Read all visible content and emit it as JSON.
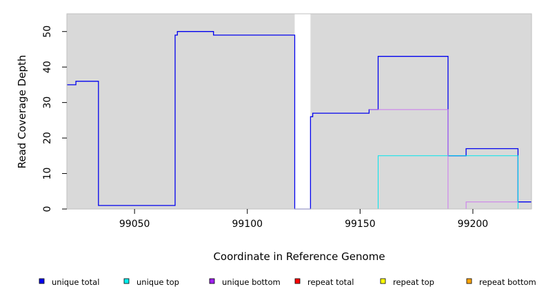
{
  "chart_data": {
    "type": "line",
    "xlabel": "Coordinate in Reference Genome",
    "ylabel": "Read Coverage Depth",
    "xlim": [
      99020,
      99226
    ],
    "ylim": [
      0,
      55
    ],
    "x_ticks": [
      99050,
      99100,
      99150,
      99200
    ],
    "x_tick_labels": [
      "99050",
      "99100",
      "99150",
      "99200"
    ],
    "y_ticks": [
      0,
      10,
      20,
      30,
      40,
      50
    ],
    "y_tick_labels": [
      "0",
      "10",
      "20",
      "30",
      "40",
      "50"
    ],
    "background_color": "#d9d9d9",
    "gap_regions": [
      [
        99121,
        99128
      ]
    ],
    "series": [
      {
        "name": "unique total",
        "color": "#0000ee",
        "points": [
          [
            99020,
            35
          ],
          [
            99024,
            35
          ],
          [
            99024,
            36
          ],
          [
            99034,
            36
          ],
          [
            99034,
            1
          ],
          [
            99068,
            1
          ],
          [
            99068,
            49
          ],
          [
            99069,
            49
          ],
          [
            99069,
            50
          ],
          [
            99085,
            50
          ],
          [
            99085,
            49
          ],
          [
            99121,
            49
          ],
          [
            99121,
            0
          ],
          [
            99128,
            0
          ],
          [
            99128,
            26
          ],
          [
            99129,
            26
          ],
          [
            99129,
            27
          ],
          [
            99154,
            27
          ],
          [
            99154,
            28
          ],
          [
            99158,
            28
          ],
          [
            99158,
            43
          ],
          [
            99189,
            43
          ],
          [
            99189,
            15
          ],
          [
            99197,
            15
          ],
          [
            99197,
            17
          ],
          [
            99220,
            17
          ],
          [
            99220,
            2
          ],
          [
            99226,
            2
          ]
        ]
      },
      {
        "name": "unique top",
        "color": "#00e5ee",
        "points": [
          [
            99020,
            0
          ],
          [
            99158,
            0
          ],
          [
            99158,
            15
          ],
          [
            99220,
            15
          ],
          [
            99220,
            0
          ]
        ]
      },
      {
        "name": "unique bottom",
        "color": "#cc77ee",
        "points": [
          [
            99154,
            28
          ],
          [
            99189,
            28
          ],
          [
            99189,
            0
          ],
          [
            99197,
            0
          ],
          [
            99197,
            2
          ],
          [
            99220,
            2
          ]
        ]
      },
      {
        "name": "repeat total",
        "color": "#ee0000",
        "points": []
      },
      {
        "name": "repeat top",
        "color": "#eeee00",
        "points": []
      },
      {
        "name": "repeat bottom",
        "color": "#ffa500",
        "points": [
          [
            99158,
            0
          ],
          [
            99220,
            0
          ]
        ]
      }
    ],
    "legend": {
      "placement": "bottom",
      "items": [
        {
          "label": "unique total",
          "color": "#0000ee"
        },
        {
          "label": "unique top",
          "color": "#00eeee"
        },
        {
          "label": "unique bottom",
          "color": "#a020f0"
        },
        {
          "label": "repeat total",
          "color": "#ff0000"
        },
        {
          "label": "repeat top",
          "color": "#ffff00"
        },
        {
          "label": "repeat bottom",
          "color": "#ffa500"
        }
      ]
    }
  }
}
